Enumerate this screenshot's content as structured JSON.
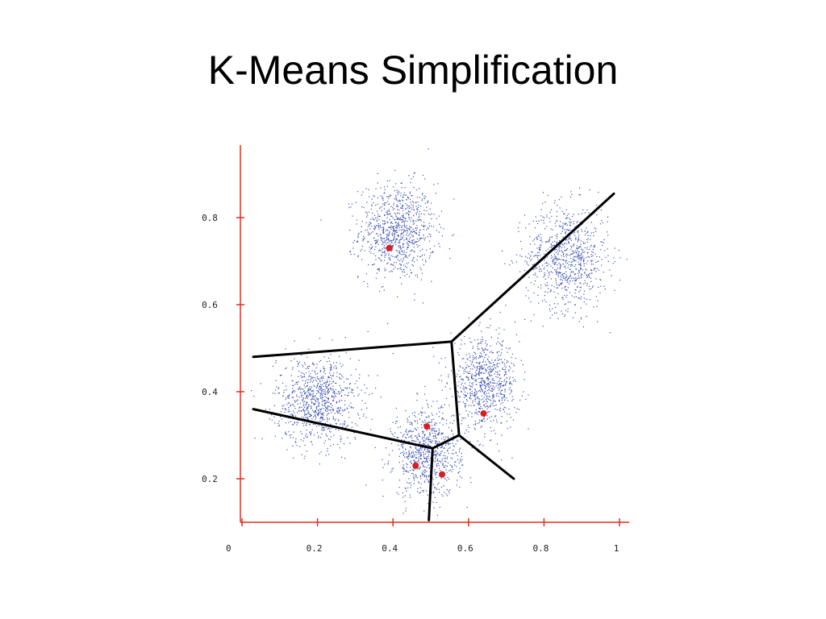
{
  "slide": {
    "title": "K-Means Simplification"
  },
  "chart_data": {
    "type": "scatter",
    "title": "",
    "xlabel": "",
    "ylabel": "",
    "xlim": [
      0,
      1.03
    ],
    "ylim": [
      0.1,
      0.97
    ],
    "x_ticks": [
      0,
      0.2,
      0.4,
      0.6,
      0.8,
      1
    ],
    "x_tick_labels": [
      "0",
      "0.2",
      "0.4",
      "0.6",
      "0.8",
      "1"
    ],
    "y_ticks": [
      0.2,
      0.4,
      0.6,
      0.8
    ],
    "y_tick_labels": [
      "0.2",
      "0.4",
      "0.6",
      "0.8"
    ],
    "grid": false,
    "legend": "none",
    "colors": {
      "axis": "#e0301e",
      "points": "#3b4fb0",
      "centers": "#d81e1e",
      "boundaries": "#000000"
    },
    "point_clusters": [
      {
        "center": [
          0.41,
          0.77
        ],
        "spread": [
          0.05,
          0.055
        ],
        "count": 900
      },
      {
        "center": [
          0.86,
          0.71
        ],
        "spread": [
          0.055,
          0.06
        ],
        "count": 850
      },
      {
        "center": [
          0.2,
          0.38
        ],
        "spread": [
          0.055,
          0.05
        ],
        "count": 900
      },
      {
        "center": [
          0.64,
          0.42
        ],
        "spread": [
          0.045,
          0.05
        ],
        "count": 800
      },
      {
        "center": [
          0.49,
          0.26
        ],
        "spread": [
          0.045,
          0.05
        ],
        "count": 800
      }
    ],
    "centers": [
      {
        "x": 0.39,
        "y": 0.73
      },
      {
        "x": 0.49,
        "y": 0.32
      },
      {
        "x": 0.64,
        "y": 0.35
      },
      {
        "x": 0.46,
        "y": 0.23
      },
      {
        "x": 0.53,
        "y": 0.21
      }
    ],
    "boundaries": [
      {
        "from": [
          0.555,
          0.515
        ],
        "to": [
          0.03,
          0.48
        ]
      },
      {
        "from": [
          0.555,
          0.515
        ],
        "to": [
          0.985,
          0.855
        ]
      },
      {
        "from": [
          0.555,
          0.515
        ],
        "to": [
          0.575,
          0.3
        ]
      },
      {
        "from": [
          0.03,
          0.36
        ],
        "to": [
          0.505,
          0.27
        ]
      },
      {
        "from": [
          0.505,
          0.27
        ],
        "to": [
          0.575,
          0.3
        ]
      },
      {
        "from": [
          0.575,
          0.3
        ],
        "to": [
          0.72,
          0.2
        ]
      },
      {
        "from": [
          0.505,
          0.27
        ],
        "to": [
          0.495,
          0.105
        ]
      }
    ]
  }
}
